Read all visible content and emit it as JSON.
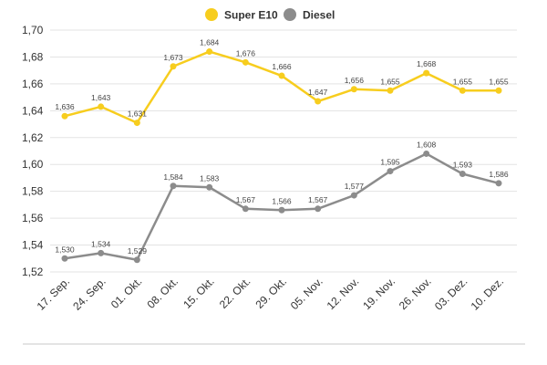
{
  "chart_data": {
    "type": "line",
    "title": "",
    "xlabel": "",
    "ylabel": "",
    "ylim": [
      1.52,
      1.7
    ],
    "y_ticks": [
      "1,52",
      "1,54",
      "1,56",
      "1,58",
      "1,60",
      "1,62",
      "1,64",
      "1,66",
      "1,68",
      "1,70"
    ],
    "y_tick_values": [
      1.52,
      1.54,
      1.56,
      1.58,
      1.6,
      1.62,
      1.64,
      1.66,
      1.68,
      1.7
    ],
    "grid": true,
    "legend_position": "top-center",
    "categories": [
      "17. Sep.",
      "24. Sep.",
      "01. Okt.",
      "08. Okt.",
      "15. Okt.",
      "22. Okt.",
      "29. Okt.",
      "05. Nov.",
      "12. Nov.",
      "19. Nov.",
      "26. Nov.",
      "03. Dez.",
      "10. Dez."
    ],
    "series": [
      {
        "name": "Super E10",
        "color": "#f7cd1e",
        "values": [
          1.636,
          1.643,
          1.631,
          1.673,
          1.684,
          1.676,
          1.666,
          1.647,
          1.656,
          1.655,
          1.668,
          1.655,
          1.655
        ],
        "labels": [
          "1,636",
          "1,643",
          "1,631",
          "1,673",
          "1,684",
          "1,676",
          "1,666",
          "1,647",
          "1,656",
          "1,655",
          "1,668",
          "1,655",
          "1,655"
        ]
      },
      {
        "name": "Diesel",
        "color": "#8c8c8c",
        "values": [
          1.53,
          1.534,
          1.529,
          1.584,
          1.583,
          1.567,
          1.566,
          1.567,
          1.577,
          1.595,
          1.608,
          1.593,
          1.586
        ],
        "labels": [
          "1,530",
          "1,534",
          "1,529",
          "1,584",
          "1,583",
          "1,567",
          "1,566",
          "1,567",
          "1,577",
          "1,595",
          "1,608",
          "1,593",
          "1,586"
        ]
      }
    ]
  }
}
